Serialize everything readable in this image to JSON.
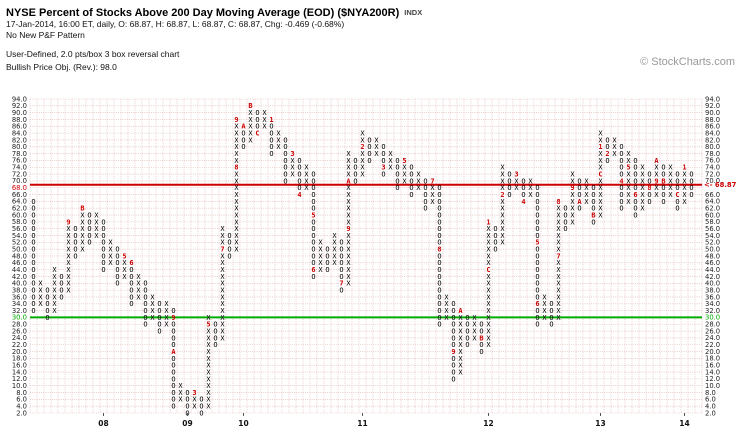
{
  "header": {
    "title": "NYSE Percent of Stocks Above 200 Day Moving Average (EOD) ($NYA200R)",
    "index_label": "INDX",
    "quote_line": "17-Jan-2014, 16:00 ET, daily, O: 68.87, H: 68.87, L: 68.87, C: 68.87, Chg: -0.469 (-0.68%)",
    "pattern_line": "No New P&F Pattern",
    "settings_line": "User-Defined, 2.0 pts/box 3 box reversal chart",
    "objective_line": "Bullish Price Obj. (Rev.): 98.0",
    "watermark": "© StockCharts.com"
  },
  "chart_data": {
    "type": "point-and-figure",
    "title": "NYSE Percent of Stocks Above 200 Day Moving Average (EOD) ($NYA200R)",
    "box_size": 2.0,
    "reversal": 3,
    "y_axis": {
      "min": 2.0,
      "max": 94.0,
      "step": 2.0,
      "tick_format": "0.1f",
      "highlight_red": 68.0,
      "highlight_green": 30.0
    },
    "x_axis": {
      "year_labels": [
        {
          "label": "08",
          "col": 10
        },
        {
          "label": "09",
          "col": 22
        },
        {
          "label": "10",
          "col": 30
        },
        {
          "label": "11",
          "col": 47
        },
        {
          "label": "12",
          "col": 65
        },
        {
          "label": "13",
          "col": 81
        },
        {
          "label": "14",
          "col": 93
        }
      ]
    },
    "annotations": {
      "resistance_line": {
        "value": 68.87,
        "label": "<- 68.87",
        "color": "#cc0000"
      },
      "support_line": {
        "value": 30.0,
        "color": "#00aa00"
      }
    },
    "colors": {
      "grid": "#dfb0b0",
      "marker": "#cc0000",
      "red": "#cc0000",
      "green": "#00aa00",
      "glyph": "#000000"
    },
    "columns": [
      {
        "type": "O",
        "from": 32,
        "to": 64
      },
      {
        "type": "X",
        "from": 34,
        "to": 40
      },
      {
        "type": "O",
        "from": 30,
        "to": 38
      },
      {
        "type": "X",
        "from": 32,
        "to": 44
      },
      {
        "type": "O",
        "from": 36,
        "to": 42
      },
      {
        "type": "X",
        "from": 38,
        "to": 58,
        "markers": {
          "58": "9"
        }
      },
      {
        "type": "O",
        "from": 48,
        "to": 56
      },
      {
        "type": "X",
        "from": 50,
        "to": 62,
        "markers": {
          "62": "B"
        }
      },
      {
        "type": "O",
        "from": 52,
        "to": 60
      },
      {
        "type": "X",
        "from": 54,
        "to": 60
      },
      {
        "type": "O",
        "from": 44,
        "to": 58
      },
      {
        "type": "X",
        "from": 46,
        "to": 52
      },
      {
        "type": "O",
        "from": 40,
        "to": 50
      },
      {
        "type": "X",
        "from": 42,
        "to": 48,
        "markers": {
          "48": "5"
        }
      },
      {
        "type": "O",
        "from": 34,
        "to": 46,
        "markers": {
          "46": "6"
        }
      },
      {
        "type": "X",
        "from": 36,
        "to": 42
      },
      {
        "type": "O",
        "from": 28,
        "to": 40
      },
      {
        "type": "X",
        "from": 30,
        "to": 36
      },
      {
        "type": "O",
        "from": 26,
        "to": 34
      },
      {
        "type": "X",
        "from": 28,
        "to": 34
      },
      {
        "type": "O",
        "from": 4,
        "to": 32,
        "markers": {
          "30": "9",
          "20": "A"
        }
      },
      {
        "type": "X",
        "from": 6,
        "to": 10
      },
      {
        "type": "O",
        "from": 2,
        "to": 8
      },
      {
        "type": "X",
        "from": 4,
        "to": 8,
        "markers": {
          "8": "3"
        }
      },
      {
        "type": "O",
        "from": 2,
        "to": 6
      },
      {
        "type": "X",
        "from": 4,
        "to": 30,
        "markers": {
          "28": "5"
        }
      },
      {
        "type": "O",
        "from": 22,
        "to": 28
      },
      {
        "type": "X",
        "from": 24,
        "to": 56,
        "markers": {
          "50": "7"
        }
      },
      {
        "type": "O",
        "from": 48,
        "to": 54
      },
      {
        "type": "X",
        "from": 50,
        "to": 88,
        "markers": {
          "74": "8",
          "88": "9"
        }
      },
      {
        "type": "O",
        "from": 80,
        "to": 86,
        "markers": {
          "86": "A"
        }
      },
      {
        "type": "X",
        "from": 82,
        "to": 92,
        "markers": {
          "92": "B"
        }
      },
      {
        "type": "O",
        "from": 84,
        "to": 90,
        "markers": {
          "84": "C"
        }
      },
      {
        "type": "X",
        "from": 86,
        "to": 90
      },
      {
        "type": "O",
        "from": 78,
        "to": 88,
        "markers": {
          "88": "1"
        }
      },
      {
        "type": "X",
        "from": 80,
        "to": 84
      },
      {
        "type": "O",
        "from": 70,
        "to": 82
      },
      {
        "type": "X",
        "from": 72,
        "to": 78,
        "markers": {
          "78": "3"
        }
      },
      {
        "type": "O",
        "from": 66,
        "to": 76,
        "markers": {
          "66": "4"
        }
      },
      {
        "type": "X",
        "from": 68,
        "to": 74
      },
      {
        "type": "O",
        "from": 42,
        "to": 72,
        "markers": {
          "60": "5",
          "44": "6"
        }
      },
      {
        "type": "X",
        "from": 44,
        "to": 52
      },
      {
        "type": "O",
        "from": 44,
        "to": 50
      },
      {
        "type": "X",
        "from": 46,
        "to": 54
      },
      {
        "type": "O",
        "from": 38,
        "to": 52,
        "markers": {
          "40": "7"
        }
      },
      {
        "type": "X",
        "from": 40,
        "to": 78,
        "markers": {
          "56": "9",
          "70": "A"
        }
      },
      {
        "type": "O",
        "from": 70,
        "to": 76
      },
      {
        "type": "X",
        "from": 72,
        "to": 84,
        "markers": {
          "80": "2"
        }
      },
      {
        "type": "O",
        "from": 76,
        "to": 82
      },
      {
        "type": "X",
        "from": 78,
        "to": 82
      },
      {
        "type": "O",
        "from": 72,
        "to": 80,
        "markers": {
          "74": "3"
        }
      },
      {
        "type": "X",
        "from": 74,
        "to": 78
      },
      {
        "type": "O",
        "from": 68,
        "to": 76
      },
      {
        "type": "X",
        "from": 70,
        "to": 76,
        "markers": {
          "76": "5"
        }
      },
      {
        "type": "O",
        "from": 66,
        "to": 74
      },
      {
        "type": "X",
        "from": 68,
        "to": 72
      },
      {
        "type": "O",
        "from": 62,
        "to": 70
      },
      {
        "type": "X",
        "from": 64,
        "to": 70,
        "markers": {
          "70": "7"
        }
      },
      {
        "type": "O",
        "from": 28,
        "to": 68,
        "markers": {
          "50": "8"
        }
      },
      {
        "type": "X",
        "from": 30,
        "to": 36
      },
      {
        "type": "O",
        "from": 12,
        "to": 34,
        "markers": {
          "20": "9"
        }
      },
      {
        "type": "X",
        "from": 14,
        "to": 32,
        "markers": {
          "32": "A"
        }
      },
      {
        "type": "O",
        "from": 22,
        "to": 30
      },
      {
        "type": "X",
        "from": 24,
        "to": 30
      },
      {
        "type": "O",
        "from": 20,
        "to": 28,
        "markers": {
          "24": "B"
        }
      },
      {
        "type": "X",
        "from": 22,
        "to": 58,
        "markers": {
          "44": "C",
          "58": "1"
        }
      },
      {
        "type": "O",
        "from": 50,
        "to": 56
      },
      {
        "type": "X",
        "from": 52,
        "to": 74,
        "markers": {
          "66": "2"
        }
      },
      {
        "type": "O",
        "from": 66,
        "to": 72
      },
      {
        "type": "X",
        "from": 68,
        "to": 72,
        "markers": {
          "72": "3"
        }
      },
      {
        "type": "O",
        "from": 64,
        "to": 70,
        "markers": {
          "64": "4"
        }
      },
      {
        "type": "X",
        "from": 66,
        "to": 70
      },
      {
        "type": "O",
        "from": 28,
        "to": 68,
        "markers": {
          "52": "5",
          "34": "6"
        }
      },
      {
        "type": "X",
        "from": 30,
        "to": 36
      },
      {
        "type": "O",
        "from": 28,
        "to": 34
      },
      {
        "type": "X",
        "from": 30,
        "to": 64,
        "markers": {
          "48": "7",
          "64": "8"
        }
      },
      {
        "type": "O",
        "from": 56,
        "to": 62
      },
      {
        "type": "X",
        "from": 58,
        "to": 72,
        "markers": {
          "68": "9"
        }
      },
      {
        "type": "O",
        "from": 62,
        "to": 70,
        "markers": {
          "64": "A"
        }
      },
      {
        "type": "X",
        "from": 64,
        "to": 70
      },
      {
        "type": "O",
        "from": 58,
        "to": 68,
        "markers": {
          "60": "B"
        }
      },
      {
        "type": "X",
        "from": 60,
        "to": 84,
        "markers": {
          "72": "C",
          "80": "1"
        }
      },
      {
        "type": "O",
        "from": 76,
        "to": 82,
        "markers": {
          "78": "2"
        }
      },
      {
        "type": "X",
        "from": 78,
        "to": 82
      },
      {
        "type": "O",
        "from": 62,
        "to": 80,
        "markers": {
          "70": "4"
        }
      },
      {
        "type": "X",
        "from": 64,
        "to": 78,
        "markers": {
          "74": "5"
        }
      },
      {
        "type": "O",
        "from": 60,
        "to": 76,
        "markers": {
          "66": "6"
        }
      },
      {
        "type": "X",
        "from": 62,
        "to": 74
      },
      {
        "type": "O",
        "from": 64,
        "to": 72,
        "markers": {
          "68": "8"
        }
      },
      {
        "type": "X",
        "from": 66,
        "to": 76,
        "markers": {
          "70": "9",
          "76": "A"
        }
      },
      {
        "type": "O",
        "from": 64,
        "to": 74,
        "markers": {
          "70": "B"
        }
      },
      {
        "type": "X",
        "from": 66,
        "to": 74
      },
      {
        "type": "O",
        "from": 62,
        "to": 72,
        "markers": {
          "66": "C"
        }
      },
      {
        "type": "X",
        "from": 64,
        "to": 74,
        "markers": {
          "74": "1"
        }
      },
      {
        "type": "O",
        "from": 66,
        "to": 72
      }
    ]
  }
}
